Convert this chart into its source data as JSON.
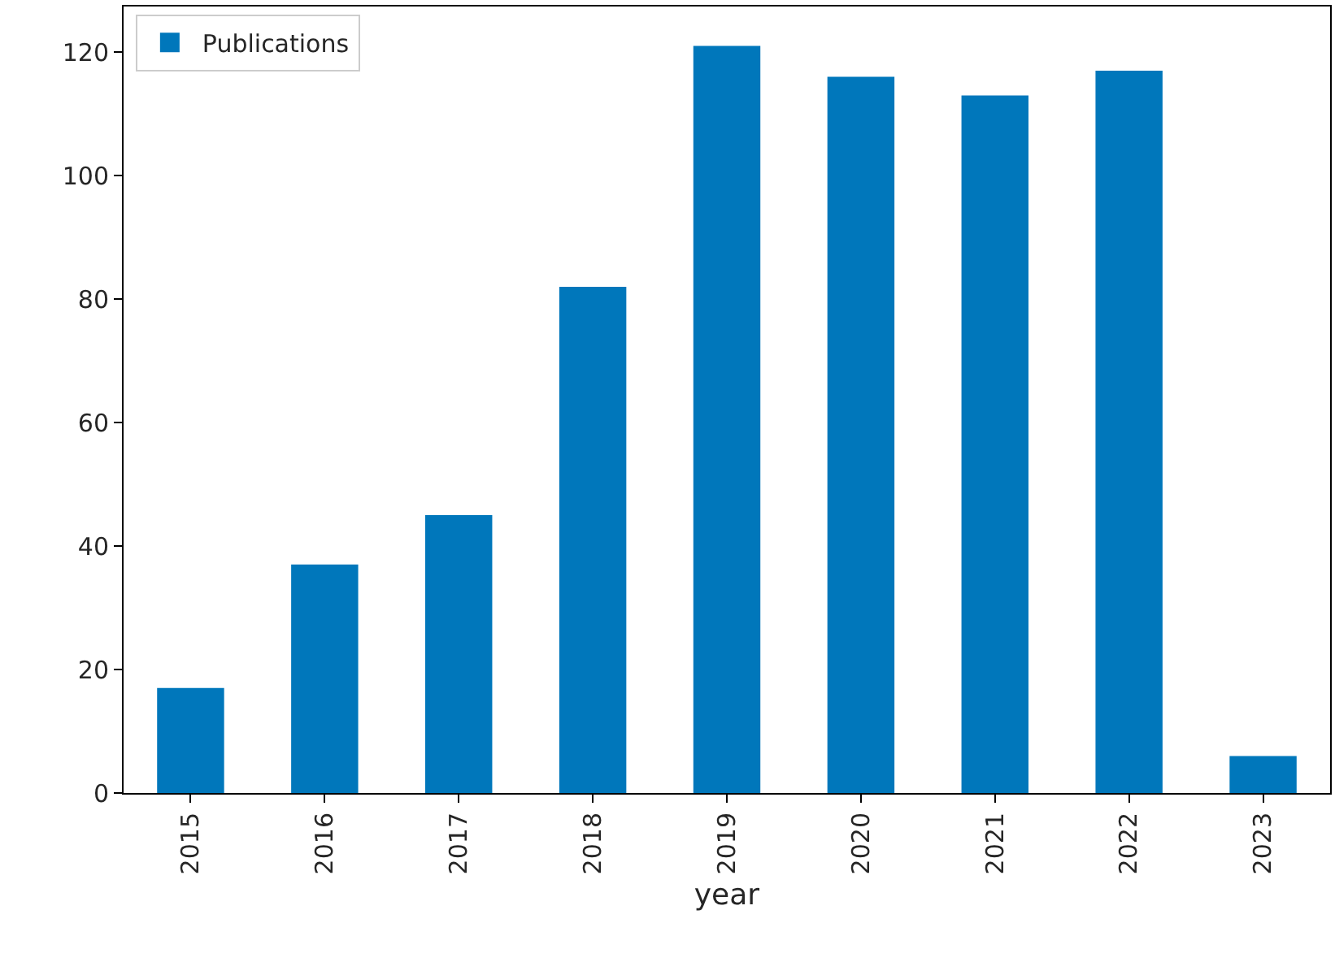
{
  "chart_data": {
    "type": "bar",
    "xlabel": "year",
    "categories": [
      "2015",
      "2016",
      "2017",
      "2018",
      "2019",
      "2020",
      "2021",
      "2022",
      "2023"
    ],
    "series": [
      {
        "name": "Publications",
        "color": "#0077bb",
        "values": [
          17,
          37,
          45,
          82,
          121,
          116,
          113,
          117,
          6
        ]
      }
    ],
    "ylim": [
      0,
      127.4
    ],
    "yticks": [
      0,
      20,
      40,
      60,
      80,
      100,
      120
    ],
    "grid": false,
    "legend": "top left"
  }
}
